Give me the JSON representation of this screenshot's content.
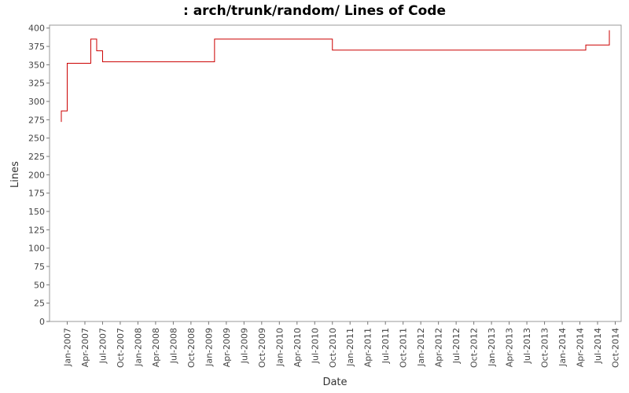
{
  "chart_data": {
    "type": "line",
    "title": ": arch/trunk/random/ Lines of Code",
    "x_label": "Date",
    "y_label": "Lines",
    "x": [
      "Dec-2006",
      "Dec-2006",
      "Jan-2007",
      "Jan-2007",
      "May-2007",
      "May-2007",
      "Jun-2007",
      "Jun-2007",
      "Jul-2007",
      "Jul-2007",
      "Feb-2009",
      "Feb-2009",
      "Oct-2010",
      "Oct-2010",
      "May-2014",
      "May-2014",
      "Sep-2014",
      "Sep-2014",
      "Sep-2014"
    ],
    "series": [
      {
        "name": "Lines",
        "color": "#cc0000",
        "values": [
          272,
          287,
          287,
          352,
          352,
          385,
          385,
          369,
          369,
          354,
          354,
          385,
          385,
          370,
          370,
          377,
          377,
          383,
          397
        ]
      }
    ],
    "xlim": [
      "Oct-2006",
      "Nov-2014"
    ],
    "xticks": [
      "Jan-2007",
      "Apr-2007",
      "Jul-2007",
      "Oct-2007",
      "Jan-2008",
      "Apr-2008",
      "Jul-2008",
      "Oct-2008",
      "Jan-2009",
      "Apr-2009",
      "Jul-2009",
      "Oct-2009",
      "Jan-2010",
      "Apr-2010",
      "Jul-2010",
      "Oct-2010",
      "Jan-2011",
      "Apr-2011",
      "Jul-2011",
      "Oct-2011",
      "Jan-2012",
      "Apr-2012",
      "Jul-2012",
      "Oct-2012",
      "Jan-2013",
      "Apr-2013",
      "Jul-2013",
      "Oct-2013",
      "Jan-2014",
      "Apr-2014",
      "Jul-2014",
      "Oct-2014"
    ],
    "ylim": [
      0,
      404
    ],
    "yticks": [
      0,
      25,
      50,
      75,
      100,
      125,
      150,
      175,
      200,
      225,
      250,
      275,
      300,
      325,
      350,
      375,
      400
    ]
  }
}
